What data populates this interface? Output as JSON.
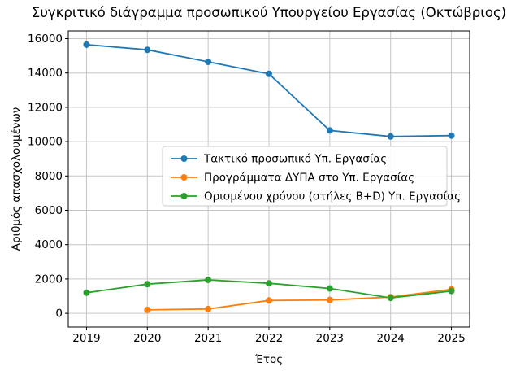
{
  "chart_data": {
    "type": "line",
    "title": "Συγκριτικό διάγραμμα προσωπικού Υπουργείου Εργασίας (Οκτώβριος)",
    "xlabel": "Έτος",
    "ylabel": "Αριθμός απασχολουμένων",
    "x": [
      2019,
      2020,
      2021,
      2022,
      2023,
      2024,
      2025
    ],
    "series": [
      {
        "name": "Τακτικό προσωπικό Υπ. Εργασίας",
        "color": "#1f77b4",
        "values": [
          15650,
          15350,
          14650,
          13950,
          10650,
          10300,
          10350
        ]
      },
      {
        "name": "Προγράμματα ΔΥΠΑ στο Υπ. Εργασίας",
        "color": "#ff7f0e",
        "values": [
          null,
          200,
          250,
          750,
          780,
          950,
          1400
        ]
      },
      {
        "name": "Ορισμένου χρόνου (στήλες B+D) Υπ. Εργασίας",
        "color": "#2ca02c",
        "values": [
          1200,
          1700,
          1950,
          1750,
          1450,
          900,
          1300
        ]
      }
    ],
    "yticks": [
      0,
      2000,
      4000,
      6000,
      8000,
      10000,
      12000,
      14000,
      16000
    ],
    "ylim": [
      -800,
      16450
    ],
    "xlim": [
      2018.7,
      2025.3
    ],
    "grid": true,
    "legend_position": "inside-center",
    "marker": "circle",
    "background_color": "#ffffff",
    "grid_color": "#c6c6c6"
  }
}
